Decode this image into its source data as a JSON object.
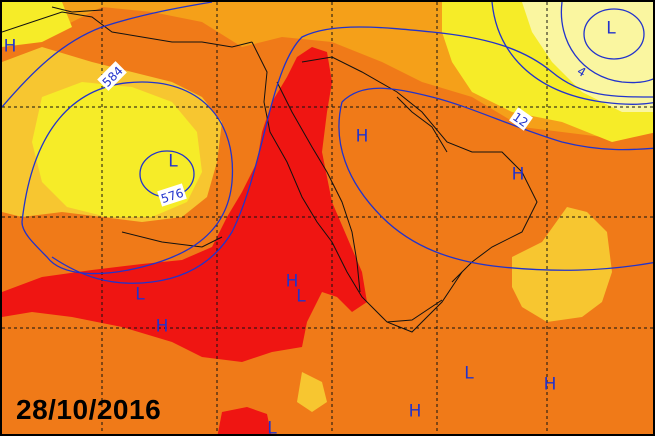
{
  "map": {
    "date": "28/10/2016",
    "colors": {
      "deep_orange": "#f07a18",
      "orange": "#f5a019",
      "yellow_orange": "#f7c630",
      "yellow": "#f6ec28",
      "pale_yellow": "#faf6a0",
      "red": "#ef1512",
      "contour": "#2233cc",
      "coastline": "#111111",
      "grid": "#111111"
    },
    "contour_labels": [
      {
        "id": "contour-label-584",
        "text": "584"
      },
      {
        "id": "contour-label-576",
        "text": "576"
      },
      {
        "id": "contour-label-12",
        "text": "12"
      },
      {
        "id": "contour-label-4",
        "text": "4"
      }
    ],
    "pressure_centers": [
      {
        "id": "low-east-med",
        "text": "L"
      },
      {
        "id": "low-northeast",
        "text": "L"
      },
      {
        "id": "low-libya",
        "text": "L"
      },
      {
        "id": "low-red-sea",
        "text": "L"
      },
      {
        "id": "low-somalia",
        "text": "L"
      },
      {
        "id": "low-partial-left",
        "text": "L"
      },
      {
        "id": "high-arabia",
        "text": "H"
      },
      {
        "id": "high-gulf",
        "text": "H"
      },
      {
        "id": "high-sudan",
        "text": "H"
      },
      {
        "id": "high-chad",
        "text": "H"
      },
      {
        "id": "high-ocean-1",
        "text": "H"
      },
      {
        "id": "high-ocean-2",
        "text": "H"
      },
      {
        "id": "high-partial-left",
        "text": "H"
      }
    ]
  }
}
